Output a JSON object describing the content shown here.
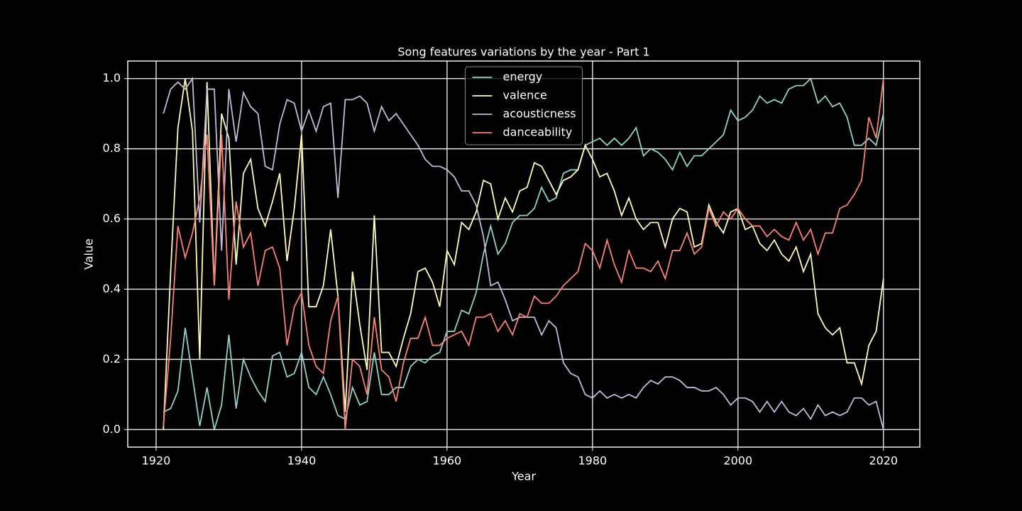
{
  "chart_data": {
    "type": "line",
    "title": "Song features variations by the year - Part 1",
    "x_label": "Year",
    "y_label": "Value",
    "x": [
      1921,
      1922,
      1923,
      1924,
      1925,
      1926,
      1927,
      1928,
      1929,
      1930,
      1931,
      1932,
      1933,
      1934,
      1935,
      1936,
      1937,
      1938,
      1939,
      1940,
      1941,
      1942,
      1943,
      1944,
      1945,
      1946,
      1947,
      1948,
      1949,
      1950,
      1951,
      1952,
      1953,
      1954,
      1955,
      1956,
      1957,
      1958,
      1959,
      1960,
      1961,
      1962,
      1963,
      1964,
      1965,
      1966,
      1967,
      1968,
      1969,
      1970,
      1971,
      1972,
      1973,
      1974,
      1975,
      1976,
      1977,
      1978,
      1979,
      1980,
      1981,
      1982,
      1983,
      1984,
      1985,
      1986,
      1987,
      1988,
      1989,
      1990,
      1991,
      1992,
      1993,
      1994,
      1995,
      1996,
      1997,
      1998,
      1999,
      2000,
      2001,
      2002,
      2003,
      2004,
      2005,
      2006,
      2007,
      2008,
      2009,
      2010,
      2011,
      2012,
      2013,
      2014,
      2015,
      2016,
      2017,
      2018,
      2019,
      2020
    ],
    "series": [
      {
        "name": "energy",
        "color": "#8dd3c7",
        "values": [
          0.05,
          0.06,
          0.11,
          0.29,
          0.15,
          0.01,
          0.12,
          0.0,
          0.07,
          0.27,
          0.06,
          0.2,
          0.15,
          0.11,
          0.08,
          0.21,
          0.22,
          0.15,
          0.16,
          0.22,
          0.12,
          0.1,
          0.15,
          0.1,
          0.04,
          0.03,
          0.12,
          0.07,
          0.08,
          0.22,
          0.1,
          0.1,
          0.12,
          0.12,
          0.18,
          0.2,
          0.19,
          0.21,
          0.22,
          0.28,
          0.28,
          0.34,
          0.33,
          0.39,
          0.5,
          0.58,
          0.5,
          0.53,
          0.59,
          0.61,
          0.61,
          0.63,
          0.69,
          0.65,
          0.66,
          0.73,
          0.74,
          0.74,
          0.81,
          0.82,
          0.83,
          0.81,
          0.83,
          0.81,
          0.83,
          0.86,
          0.78,
          0.8,
          0.79,
          0.77,
          0.74,
          0.79,
          0.75,
          0.78,
          0.78,
          0.8,
          0.82,
          0.84,
          0.91,
          0.88,
          0.89,
          0.91,
          0.95,
          0.93,
          0.94,
          0.93,
          0.97,
          0.98,
          0.98,
          1.0,
          0.93,
          0.95,
          0.92,
          0.93,
          0.89,
          0.81,
          0.81,
          0.83,
          0.81,
          0.9
        ]
      },
      {
        "name": "valence",
        "color": "#feffb3",
        "values": [
          0.0,
          0.45,
          0.86,
          1.0,
          0.85,
          0.2,
          0.99,
          0.41,
          0.9,
          0.83,
          0.47,
          0.73,
          0.77,
          0.63,
          0.58,
          0.65,
          0.73,
          0.48,
          0.63,
          0.84,
          0.35,
          0.35,
          0.41,
          0.57,
          0.38,
          0.05,
          0.45,
          0.3,
          0.17,
          0.61,
          0.22,
          0.22,
          0.18,
          0.26,
          0.33,
          0.45,
          0.46,
          0.42,
          0.35,
          0.51,
          0.47,
          0.59,
          0.57,
          0.62,
          0.71,
          0.7,
          0.6,
          0.66,
          0.62,
          0.68,
          0.69,
          0.76,
          0.75,
          0.71,
          0.67,
          0.71,
          0.72,
          0.74,
          0.81,
          0.77,
          0.72,
          0.73,
          0.68,
          0.61,
          0.66,
          0.6,
          0.57,
          0.59,
          0.59,
          0.52,
          0.6,
          0.63,
          0.62,
          0.52,
          0.53,
          0.64,
          0.59,
          0.56,
          0.62,
          0.63,
          0.57,
          0.58,
          0.53,
          0.51,
          0.54,
          0.5,
          0.48,
          0.52,
          0.45,
          0.5,
          0.33,
          0.29,
          0.27,
          0.29,
          0.19,
          0.19,
          0.13,
          0.24,
          0.28,
          0.43
        ]
      },
      {
        "name": "acousticness",
        "color": "#bfbbd9",
        "values": [
          0.9,
          0.97,
          0.99,
          0.97,
          1.0,
          0.59,
          0.97,
          0.97,
          0.51,
          0.97,
          0.82,
          0.96,
          0.92,
          0.9,
          0.75,
          0.74,
          0.87,
          0.94,
          0.93,
          0.85,
          0.91,
          0.85,
          0.92,
          0.93,
          0.66,
          0.94,
          0.94,
          0.95,
          0.93,
          0.85,
          0.92,
          0.88,
          0.9,
          0.87,
          0.84,
          0.81,
          0.77,
          0.75,
          0.75,
          0.74,
          0.72,
          0.68,
          0.68,
          0.64,
          0.55,
          0.41,
          0.42,
          0.37,
          0.31,
          0.32,
          0.32,
          0.32,
          0.27,
          0.31,
          0.29,
          0.19,
          0.16,
          0.15,
          0.1,
          0.09,
          0.11,
          0.09,
          0.1,
          0.09,
          0.1,
          0.09,
          0.12,
          0.14,
          0.13,
          0.15,
          0.15,
          0.14,
          0.12,
          0.12,
          0.11,
          0.11,
          0.12,
          0.1,
          0.07,
          0.09,
          0.09,
          0.08,
          0.05,
          0.08,
          0.05,
          0.08,
          0.05,
          0.04,
          0.06,
          0.03,
          0.07,
          0.04,
          0.05,
          0.04,
          0.05,
          0.09,
          0.09,
          0.07,
          0.08,
          0.0
        ]
      },
      {
        "name": "danceability",
        "color": "#fa8174",
        "values": [
          0.01,
          0.26,
          0.58,
          0.49,
          0.56,
          0.66,
          0.84,
          0.41,
          0.84,
          0.37,
          0.65,
          0.52,
          0.56,
          0.41,
          0.51,
          0.52,
          0.46,
          0.24,
          0.35,
          0.39,
          0.24,
          0.18,
          0.16,
          0.31,
          0.38,
          0.0,
          0.2,
          0.18,
          0.1,
          0.32,
          0.17,
          0.15,
          0.08,
          0.19,
          0.26,
          0.26,
          0.32,
          0.24,
          0.24,
          0.26,
          0.27,
          0.28,
          0.24,
          0.32,
          0.32,
          0.33,
          0.28,
          0.31,
          0.27,
          0.33,
          0.32,
          0.38,
          0.36,
          0.36,
          0.38,
          0.41,
          0.43,
          0.45,
          0.53,
          0.51,
          0.46,
          0.54,
          0.47,
          0.42,
          0.51,
          0.46,
          0.46,
          0.45,
          0.48,
          0.43,
          0.51,
          0.51,
          0.56,
          0.5,
          0.52,
          0.63,
          0.58,
          0.62,
          0.6,
          0.63,
          0.6,
          0.58,
          0.58,
          0.55,
          0.57,
          0.55,
          0.54,
          0.59,
          0.54,
          0.57,
          0.5,
          0.56,
          0.56,
          0.63,
          0.64,
          0.67,
          0.71,
          0.89,
          0.83,
          1.0
        ]
      }
    ],
    "xlim": [
      1916.1,
      2025
    ],
    "ylim": [
      -0.05,
      1.05
    ],
    "xticks": [
      1920,
      1940,
      1960,
      1980,
      2000,
      2020
    ],
    "yticks": [
      {
        "value": 0,
        "label": "0.0"
      },
      0.2,
      0.4,
      0.6,
      0.8,
      {
        "value": 1,
        "label": "1.0"
      }
    ],
    "grid": true,
    "legend": "upper center"
  }
}
